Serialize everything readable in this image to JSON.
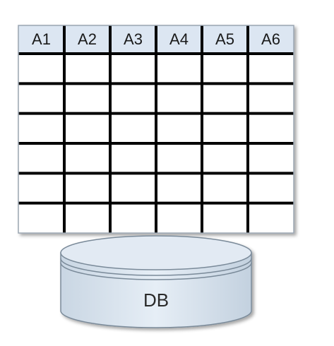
{
  "table": {
    "columns": [
      "A1",
      "A2",
      "A3",
      "A4",
      "A5",
      "A6"
    ],
    "body_row_count": 6,
    "header_fill": "#dce6f2",
    "cell_fill": "#ffffff",
    "grid_color": "#000000"
  },
  "database": {
    "label": "DB",
    "fill": "#dce6f0",
    "stroke": "#7a8a99"
  }
}
